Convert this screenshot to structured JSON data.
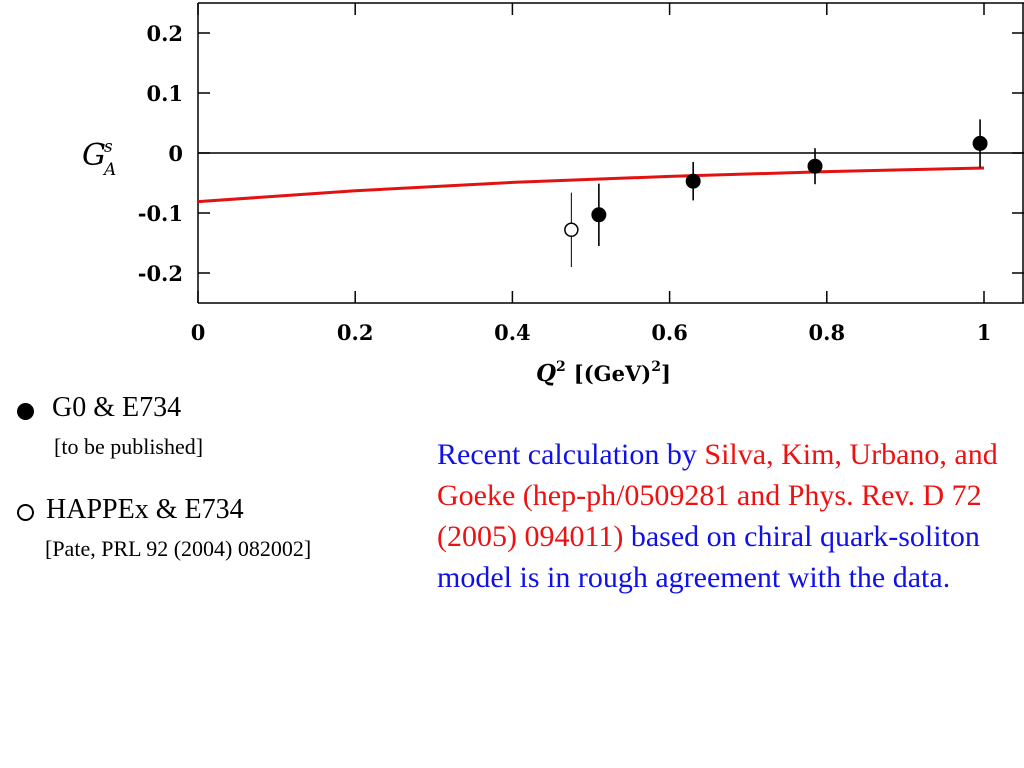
{
  "chart_data": {
    "type": "scatter",
    "ylabel_main": "G",
    "ylabel_sup": "s",
    "ylabel_sub": "A",
    "xlabel_main": "Q",
    "xlabel_sup": "2",
    "xlabel_unit_open": "[(GeV)",
    "xlabel_unit_sup": "2",
    "xlabel_unit_close": "]",
    "xlim": [
      0,
      1.05
    ],
    "ylim": [
      -0.25,
      0.25
    ],
    "x_ticks": [
      0,
      0.2,
      0.4,
      0.6,
      0.8,
      1
    ],
    "x_tick_labels": [
      "0",
      "0.2",
      "0.4",
      "0.6",
      "0.8",
      "1"
    ],
    "y_ticks": [
      0.2,
      0.1,
      0,
      -0.1,
      -0.2
    ],
    "y_tick_labels": [
      "0.2",
      "0.1",
      "0",
      "-0.1",
      "-0.2"
    ],
    "zero_line": true,
    "series": [
      {
        "marker": "filled-circle",
        "color": "#000000",
        "points": [
          {
            "x": 0.51,
            "y": -0.103,
            "err": 0.052
          },
          {
            "x": 0.63,
            "y": -0.047,
            "err": 0.032
          },
          {
            "x": 0.785,
            "y": -0.022,
            "err": 0.03
          },
          {
            "x": 0.995,
            "y": 0.016,
            "err": 0.04
          }
        ]
      },
      {
        "marker": "open-circle",
        "color": "#000000",
        "points": [
          {
            "x": 0.475,
            "y": -0.128,
            "err": 0.062
          }
        ]
      },
      {
        "type": "line",
        "color": "#e21212",
        "points": [
          {
            "x": 0,
            "y": -0.081
          },
          {
            "x": 0.2,
            "y": -0.063
          },
          {
            "x": 0.4,
            "y": -0.049
          },
          {
            "x": 0.6,
            "y": -0.039
          },
          {
            "x": 0.8,
            "y": -0.031
          },
          {
            "x": 1.0,
            "y": -0.025
          }
        ]
      }
    ]
  },
  "legend": {
    "item1_label": "G0 & E734",
    "item1_note": "[to be published]",
    "item2_label": "HAPPEx & E734",
    "item2_note": "[Pate, PRL 92 (2004) 082002]"
  },
  "note": {
    "part1": "Recent calculation by ",
    "part2": "Silva, Kim, Urbano, and Goeke (hep-ph/0509281 and Phys. Rev. D 72 (2005) 094011)",
    "part3": " based on chiral quark-soliton model is in rough agreement with the data.",
    "color_blue": "#1010e8",
    "color_red": "#ee1111"
  }
}
